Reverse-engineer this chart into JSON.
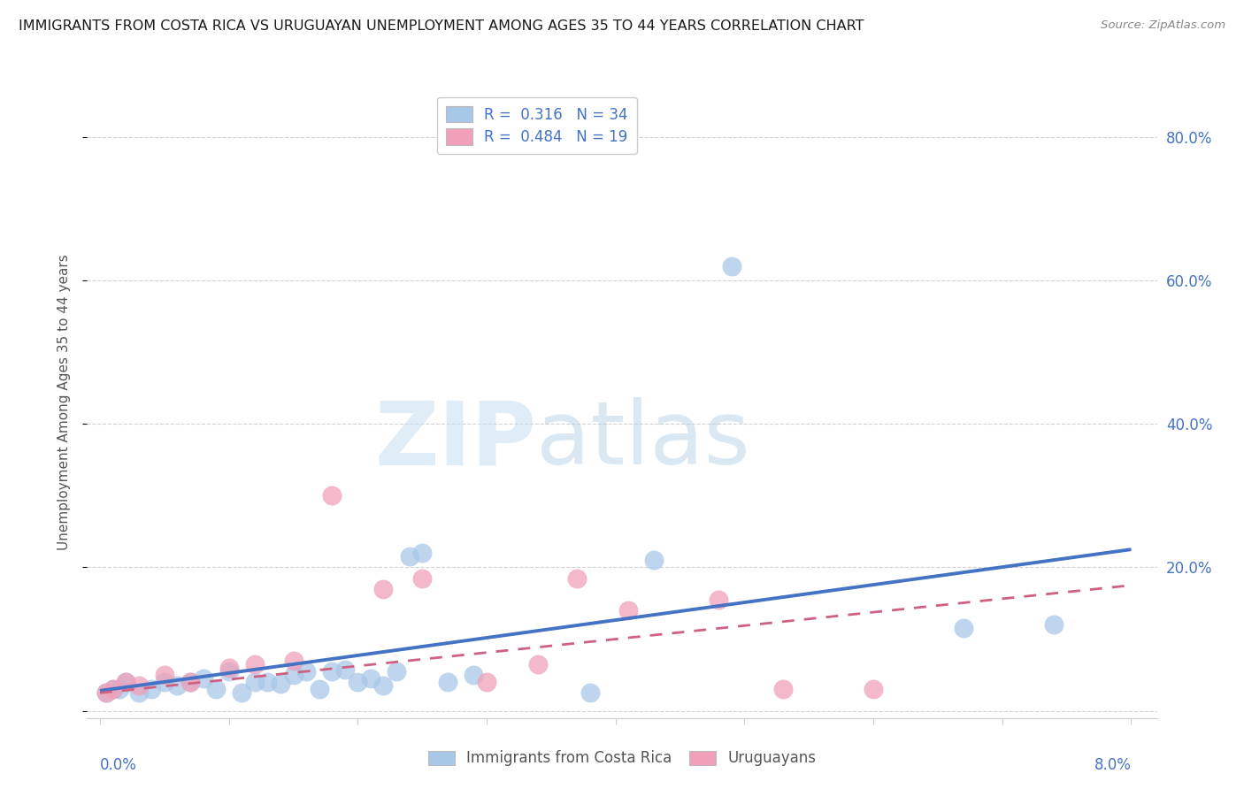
{
  "title": "IMMIGRANTS FROM COSTA RICA VS URUGUAYAN UNEMPLOYMENT AMONG AGES 35 TO 44 YEARS CORRELATION CHART",
  "source": "Source: ZipAtlas.com",
  "ylabel": "Unemployment Among Ages 35 to 44 years",
  "y_tick_values": [
    0.0,
    0.2,
    0.4,
    0.6,
    0.8
  ],
  "y_tick_labels": [
    "",
    "20.0%",
    "40.0%",
    "60.0%",
    "80.0%"
  ],
  "x_tick_values": [
    0.0,
    0.01,
    0.02,
    0.03,
    0.04,
    0.05,
    0.06,
    0.07,
    0.08
  ],
  "xlim": [
    -0.001,
    0.082
  ],
  "ylim": [
    -0.01,
    0.87
  ],
  "blue_color": "#A8C8E8",
  "pink_color": "#F0A0B8",
  "line_blue": "#4472C4",
  "line_pink_solid": "#D06080",
  "line_pink_dash": "#E0A0B0",
  "blue_scatter_x": [
    0.0005,
    0.001,
    0.0015,
    0.002,
    0.003,
    0.004,
    0.005,
    0.006,
    0.007,
    0.008,
    0.009,
    0.01,
    0.011,
    0.012,
    0.013,
    0.014,
    0.015,
    0.016,
    0.017,
    0.018,
    0.019,
    0.02,
    0.021,
    0.022,
    0.023,
    0.024,
    0.025,
    0.027,
    0.029,
    0.038,
    0.043,
    0.049,
    0.067,
    0.074
  ],
  "blue_scatter_y": [
    0.025,
    0.03,
    0.03,
    0.04,
    0.025,
    0.03,
    0.04,
    0.035,
    0.04,
    0.045,
    0.03,
    0.055,
    0.025,
    0.04,
    0.04,
    0.038,
    0.05,
    0.055,
    0.03,
    0.055,
    0.058,
    0.04,
    0.045,
    0.035,
    0.055,
    0.215,
    0.22,
    0.04,
    0.05,
    0.025,
    0.21,
    0.62,
    0.115,
    0.12
  ],
  "pink_scatter_x": [
    0.0005,
    0.001,
    0.002,
    0.003,
    0.005,
    0.007,
    0.01,
    0.012,
    0.015,
    0.018,
    0.022,
    0.025,
    0.03,
    0.034,
    0.037,
    0.041,
    0.048,
    0.053,
    0.06
  ],
  "pink_scatter_y": [
    0.025,
    0.03,
    0.04,
    0.035,
    0.05,
    0.04,
    0.06,
    0.065,
    0.07,
    0.3,
    0.17,
    0.185,
    0.04,
    0.065,
    0.185,
    0.14,
    0.155,
    0.03,
    0.03
  ],
  "blue_line_x": [
    0.0,
    0.08
  ],
  "blue_line_y": [
    0.028,
    0.225
  ],
  "pink_line_x": [
    0.0,
    0.08
  ],
  "pink_line_y": [
    0.025,
    0.175
  ]
}
